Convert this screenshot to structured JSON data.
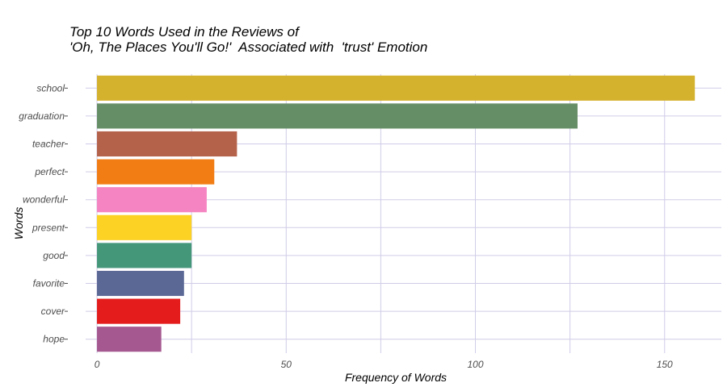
{
  "chart_data": {
    "type": "bar",
    "orientation": "horizontal",
    "title_lines": [
      "Top 10 Words Used in the Reviews of",
      "'Oh, The Places You'll Go!'  Associated with  'trust' Emotion"
    ],
    "xlabel": "Frequency of Words",
    "ylabel": "Words",
    "categories": [
      "school",
      "graduation",
      "teacher",
      "perfect",
      "wonderful",
      "present",
      "good",
      "favorite",
      "cover",
      "hope"
    ],
    "values": [
      158,
      127,
      37,
      31,
      29,
      25,
      25,
      23,
      22,
      17
    ],
    "colors": [
      "#D4B22E",
      "#668E66",
      "#B5624B",
      "#F27D15",
      "#F585C2",
      "#FCD225",
      "#45977A",
      "#5B6795",
      "#E41C1C",
      "#A5588F"
    ],
    "xlim": [
      -3,
      165
    ],
    "xticks": [
      0,
      50,
      100,
      150
    ],
    "grid": true,
    "grid_color": "#d0cce8"
  }
}
